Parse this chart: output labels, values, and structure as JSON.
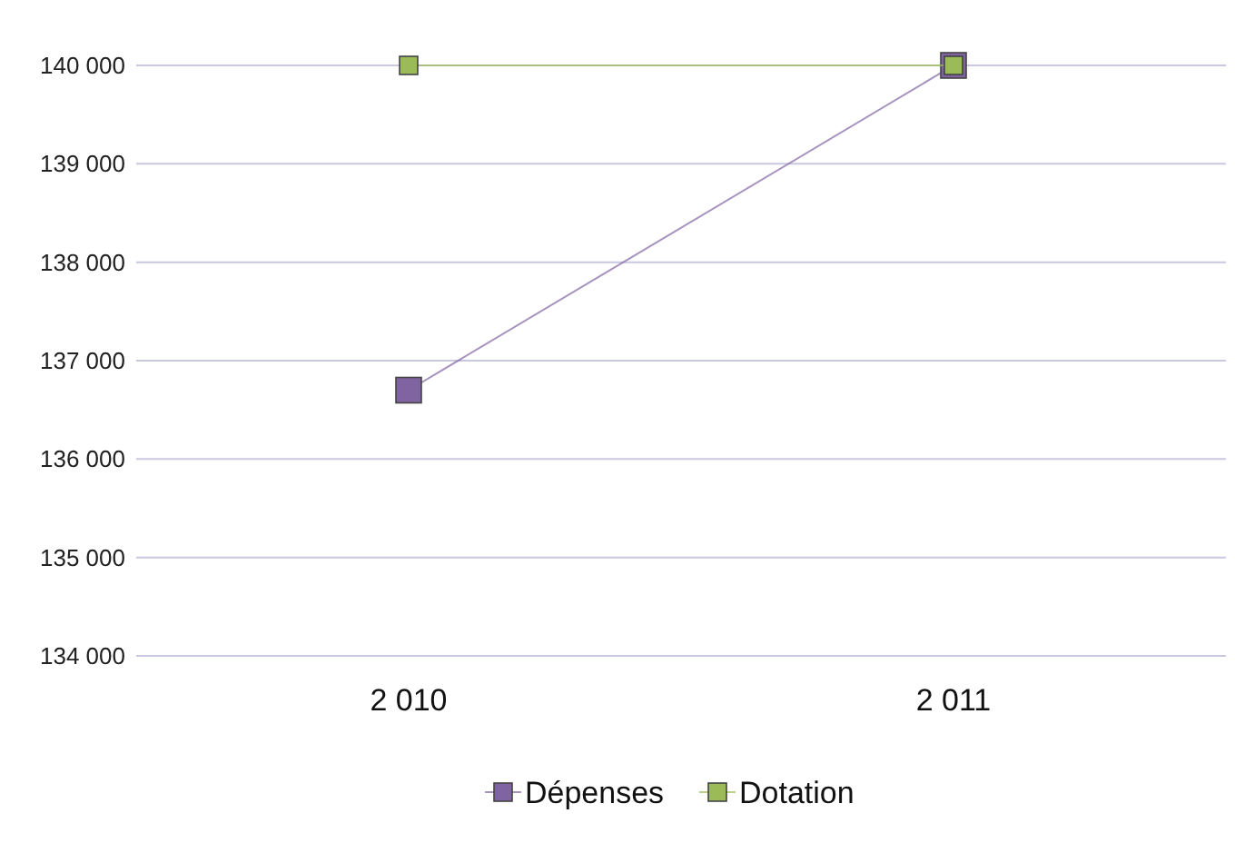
{
  "chart_data": {
    "type": "line",
    "categories": [
      "2 010",
      "2 011"
    ],
    "series": [
      {
        "name": "Dépenses",
        "color": "#8064a2",
        "values": [
          136700,
          140000
        ]
      },
      {
        "name": "Dotation",
        "color": "#9bbb59",
        "values": [
          140000,
          140000
        ]
      }
    ],
    "ylim": [
      134000,
      140000
    ],
    "yticks": [
      {
        "value": 134000,
        "label": "134 000"
      },
      {
        "value": 135000,
        "label": "135 000"
      },
      {
        "value": 136000,
        "label": "136 000"
      },
      {
        "value": 137000,
        "label": "137 000"
      },
      {
        "value": 138000,
        "label": "138 000"
      },
      {
        "value": 139000,
        "label": "139 000"
      },
      {
        "value": 140000,
        "label": "140 000"
      }
    ],
    "grid": "y",
    "legend": "bottom",
    "marker": "square",
    "line_style": "solid"
  }
}
